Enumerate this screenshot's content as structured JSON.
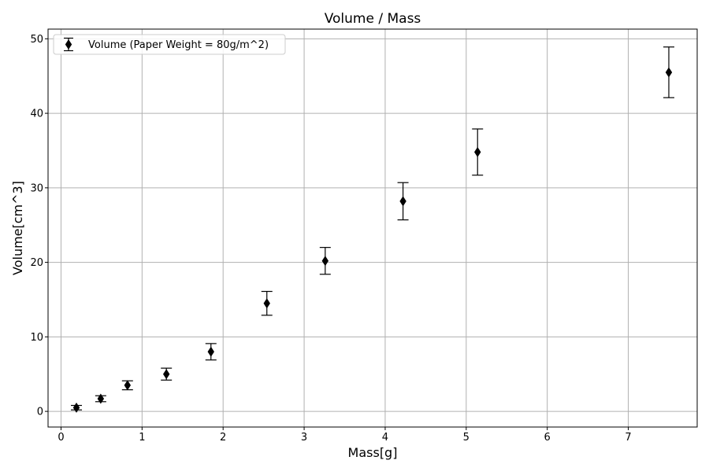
{
  "chart_data": {
    "type": "scatter",
    "title": "Volume / Mass",
    "xlabel": "Mass[g]",
    "ylabel": "Volume[cm^3]",
    "xlim": [
      -0.16,
      7.85
    ],
    "ylim": [
      -2.1,
      51.3
    ],
    "grid": true,
    "legend_position": "upper-left",
    "x_ticks": [
      0,
      1,
      2,
      3,
      4,
      5,
      6,
      7
    ],
    "x_tick_labels": [
      "0",
      "1",
      "2",
      "3",
      "4",
      "5",
      "6",
      "7"
    ],
    "y_ticks": [
      0,
      10,
      20,
      30,
      40,
      50
    ],
    "y_tick_labels": [
      "0",
      "10",
      "20",
      "30",
      "40",
      "50"
    ],
    "series": [
      {
        "name": "Volume (Paper Weight = 80g/m^2)",
        "marker": "diamond",
        "color": "#000000",
        "x": [
          0.19,
          0.49,
          0.82,
          1.3,
          1.85,
          2.54,
          3.26,
          4.22,
          5.14,
          7.5
        ],
        "y": [
          0.5,
          1.7,
          3.5,
          5.0,
          8.0,
          14.5,
          20.2,
          28.2,
          34.8,
          45.5
        ],
        "yerr": [
          0.3,
          0.4,
          0.6,
          0.8,
          1.1,
          1.6,
          1.8,
          2.5,
          3.1,
          3.4
        ]
      }
    ]
  },
  "colors": {
    "grid": "#b0b0b0",
    "axes": "#000000",
    "background": "#ffffff",
    "legend_border": "#cccccc"
  }
}
